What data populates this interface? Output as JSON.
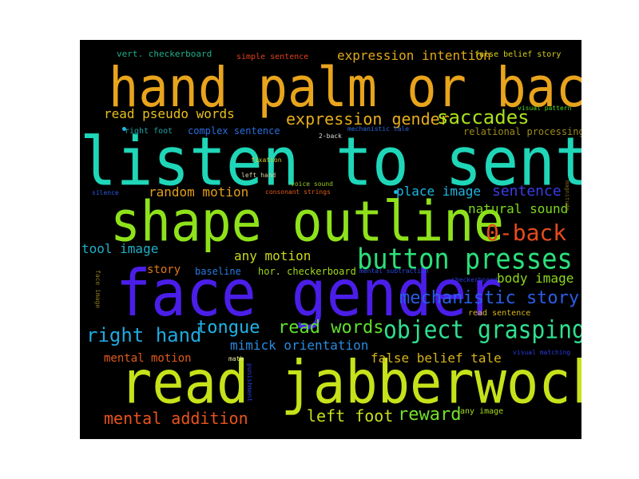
{
  "words": [
    {
      "text": "hand palm or back",
      "color": "#e8a41c"
    },
    {
      "text": "listen to sentence",
      "color": "#1fd6b8"
    },
    {
      "text": "shape outline",
      "color": "#8fe21b"
    },
    {
      "text": "face gender",
      "color": "#4a1ee8"
    },
    {
      "text": "read jabberwocky",
      "color": "#c6e21a"
    },
    {
      "text": "button presses",
      "color": "#2be07a"
    },
    {
      "text": "object grasping",
      "color": "#2fe08f"
    },
    {
      "text": "mechanistic story",
      "color": "#2a5de8"
    },
    {
      "text": "0-back",
      "color": "#e84a1c"
    },
    {
      "text": "expression gender",
      "color": "#e7ad1c"
    },
    {
      "text": "saccades",
      "color": "#a9e11b"
    },
    {
      "text": "read words",
      "color": "#5fe02a"
    },
    {
      "text": "right hand",
      "color": "#1fa8e0"
    },
    {
      "text": "tongue",
      "color": "#1fb4e6"
    },
    {
      "text": "mental addition",
      "color": "#e8541c"
    },
    {
      "text": "left foot",
      "color": "#c9df1a"
    },
    {
      "text": "reward",
      "color": "#73e02b"
    },
    {
      "text": "expression intention",
      "color": "#e0a91b"
    },
    {
      "text": "read pseudo words",
      "color": "#e8c01c"
    },
    {
      "text": "random motion",
      "color": "#e39e1a"
    },
    {
      "text": "any motion",
      "color": "#c9d81a"
    },
    {
      "text": "sentence",
      "color": "#3a3be8"
    },
    {
      "text": "place image",
      "color": "#1fb6e0"
    },
    {
      "text": "natural sound",
      "color": "#7cd91f"
    },
    {
      "text": "tool image",
      "color": "#1fb0c8"
    },
    {
      "text": "body image",
      "color": "#8ed81b"
    },
    {
      "text": "mimick orientation",
      "color": "#2a8ae0"
    },
    {
      "text": "false belief tale",
      "color": "#d6b41a"
    },
    {
      "text": "mental motion",
      "color": "#e25a1c"
    },
    {
      "text": "story",
      "color": "#e0781a"
    },
    {
      "text": "complex sentence",
      "color": "#2a6ee0"
    },
    {
      "text": "baseline",
      "color": "#2a7ae0"
    },
    {
      "text": "hor. checkerboard",
      "color": "#9fd81b"
    },
    {
      "text": "relational processing",
      "color": "#9c8a1a"
    },
    {
      "text": "vert. checkerboard",
      "color": "#1fb08a"
    },
    {
      "text": "simple sentence",
      "color": "#e0401c"
    },
    {
      "text": "false belief story",
      "color": "#d6d01a"
    },
    {
      "text": "visual pattern",
      "color": "#4fd81b"
    },
    {
      "text": "right foot",
      "color": "#1fa0a8"
    },
    {
      "text": "mechanistic tale",
      "color": "#2a6ae0"
    },
    {
      "text": "2-back",
      "color": "#d8d8d8"
    },
    {
      "text": "fixation",
      "color": "#d8c81a"
    },
    {
      "text": "left hand",
      "color": "#d8d0a0"
    },
    {
      "text": "voice sound",
      "color": "#9cc81b"
    },
    {
      "text": "consonant strings",
      "color": "#e05a1c"
    },
    {
      "text": "silence",
      "color": "#2a5ae0"
    },
    {
      "text": "mental subtraction",
      "color": "#2a4ae0"
    },
    {
      "text": "checkerboard",
      "color": "#2a3ae0"
    },
    {
      "text": "read sentence",
      "color": "#d8b81a"
    },
    {
      "text": "visual matching",
      "color": "#2a3ad8"
    },
    {
      "text": "math",
      "color": "#e8e8a0"
    },
    {
      "text": "any image",
      "color": "#a6d81b"
    },
    {
      "text": "face image",
      "color": "#8a7a1a"
    },
    {
      "text": "punishment",
      "color": "#2a3ae0"
    },
    {
      "text": "magnitude",
      "color": "#7a6a1a"
    }
  ]
}
